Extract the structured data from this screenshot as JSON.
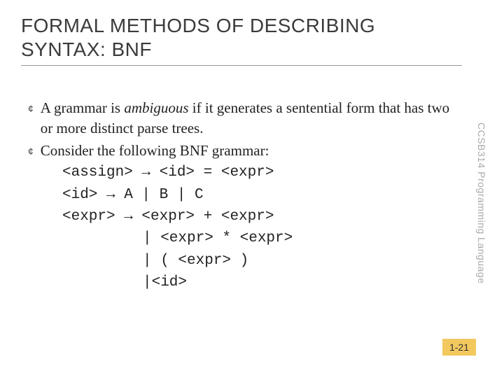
{
  "title": "FORMAL METHODS OF DESCRIBING SYNTAX: BNF",
  "lines": [
    {
      "kind": "bullet",
      "runs": [
        {
          "style": "body",
          "text": "A grammar is "
        },
        {
          "style": "italic",
          "text": "ambiguous"
        },
        {
          "style": "body",
          "text": " if it generates a sentential form that has two or more distinct parse trees."
        }
      ]
    },
    {
      "kind": "bullet",
      "runs": [
        {
          "style": "body",
          "text": "Consider the following BNF grammar:"
        }
      ]
    },
    {
      "kind": "code-indent",
      "runs": [
        {
          "style": "mono",
          "text": "<assign> → <id> = <expr>"
        }
      ]
    },
    {
      "kind": "code-indent",
      "runs": [
        {
          "style": "mono",
          "text": "<id> → A | B | C"
        }
      ]
    },
    {
      "kind": "code-indent",
      "runs": [
        {
          "style": "mono",
          "text": "<expr> → <expr> + <expr>"
        }
      ]
    },
    {
      "kind": "code-indent2",
      "runs": [
        {
          "style": "mono",
          "text": "| <expr> * <expr>"
        }
      ]
    },
    {
      "kind": "code-indent2",
      "runs": [
        {
          "style": "mono",
          "text": "| ( <expr> )"
        }
      ]
    },
    {
      "kind": "code-indent2",
      "runs": [
        {
          "style": "mono",
          "text": "|<id>"
        }
      ]
    }
  ],
  "sidebar": "CCSB314 Programming Language",
  "pagenum": "1-21",
  "colors": {
    "background": "#ffffff",
    "title": "#3b3b3b",
    "body": "#222222",
    "sidebar": "#aaaaaa",
    "pagenum_bg": "#f2c85f",
    "pagenum_fg": "#333333"
  },
  "fonts": {
    "title_size": 28,
    "body_size": 21,
    "mono_size": 21,
    "sidebar_size": 14,
    "pagenum_size": 14
  }
}
